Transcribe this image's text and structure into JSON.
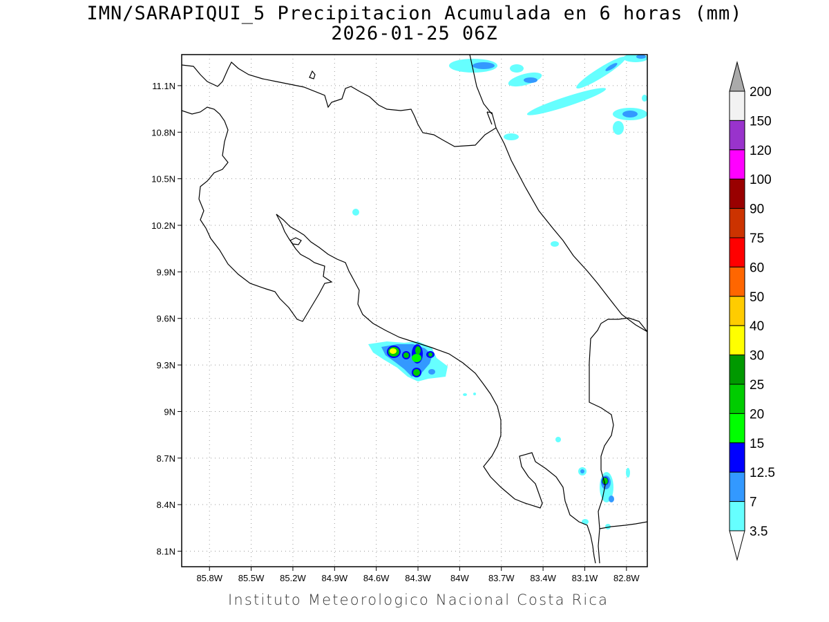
{
  "title": {
    "line1": "IMN/SARAPIQUI_5 Precipitacion Acumulada en 6 horas (mm)",
    "line2": "2026-01-25 06Z"
  },
  "footer": "Instituto Meteorologico Nacional Costa Rica",
  "map": {
    "lon_range": [
      -86.0,
      -82.65
    ],
    "lat_range": [
      8.0,
      11.3
    ],
    "grid": true,
    "x_ticks": [
      "85.8W",
      "85.5W",
      "85.2W",
      "84.9W",
      "84.6W",
      "84.3W",
      "84W",
      "83.7W",
      "83.4W",
      "83.1W",
      "82.8W"
    ],
    "y_ticks": [
      "11.1N",
      "10.8N",
      "10.5N",
      "10.2N",
      "9.9N",
      "9.6N",
      "9.3N",
      "9N",
      "8.7N",
      "8.4N",
      "8.1N"
    ]
  },
  "colorbar": {
    "labels": [
      "200",
      "150",
      "120",
      "100",
      "90",
      "75",
      "60",
      "50",
      "40",
      "30",
      "25",
      "20",
      "15",
      "12.5",
      "7",
      "3.5"
    ],
    "colors": [
      "#f2f2f2",
      "#9933cc",
      "#ff00ff",
      "#990000",
      "#cc3300",
      "#ff0000",
      "#ff6600",
      "#ffcc00",
      "#ffff00",
      "#009900",
      "#00cc00",
      "#00ff00",
      "#0000ff",
      "#3399ff",
      "#66ffff"
    ],
    "over_color": "#aaaaaa",
    "under_color": "#ffffff"
  }
}
